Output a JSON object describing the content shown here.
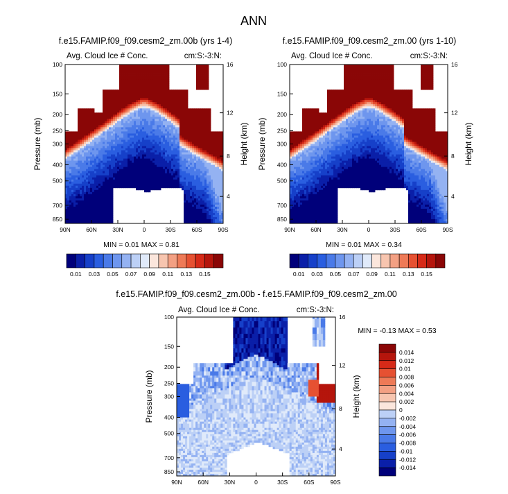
{
  "page_title": "ANN",
  "palette": [
    "#00007a",
    "#0a1fa8",
    "#1640c9",
    "#2a5ee0",
    "#4a7ae8",
    "#6e96ee",
    "#94b2f2",
    "#bcd0f6",
    "#e0eafa",
    "#fbe6dc",
    "#f7c5af",
    "#f3a083",
    "#ee7a57",
    "#e65132",
    "#d62a18",
    "#b5150c",
    "#8a0606"
  ],
  "chart_data": [
    {
      "type": "heatmap",
      "title": "f.e15.FAMIP.f09_f09.cesm2_zm.00b (yrs 1-4)",
      "left_label": "Avg. Cloud Ice # Conc.",
      "right_label": "cm:S:-3:N:",
      "xlabel": "",
      "ylabel": "Pressure (mb)",
      "ylabel_right": "Height (km)",
      "x_ticks": [
        "90N",
        "60N",
        "30N",
        "0",
        "30S",
        "60S",
        "90S"
      ],
      "y_ticks": [
        "100",
        "150",
        "200",
        "250",
        "300",
        "400",
        "500",
        "700",
        "850"
      ],
      "y_right_ticks": [
        "16",
        "12",
        "8",
        "4"
      ],
      "min_max": "MIN =  0.01   MAX =  0.81",
      "colorbar_labels": [
        "0.01",
        "0.03",
        "0.05",
        "0.07",
        "0.09",
        "0.11",
        "0.13",
        "0.15"
      ]
    },
    {
      "type": "heatmap",
      "title": "f.e15.FAMIP.f09_f09.cesm2_zm.00 (yrs 1-10)",
      "left_label": "Avg. Cloud Ice # Conc.",
      "right_label": "cm:S:-3:N:",
      "xlabel": "",
      "ylabel": "Pressure (mb)",
      "ylabel_right": "Height (km)",
      "x_ticks": [
        "90N",
        "60N",
        "30N",
        "0",
        "30S",
        "60S",
        "90S"
      ],
      "y_ticks": [
        "100",
        "150",
        "200",
        "250",
        "300",
        "400",
        "500",
        "700",
        "850"
      ],
      "y_right_ticks": [
        "16",
        "12",
        "8",
        "4"
      ],
      "min_max": "MIN =  0.01   MAX =  0.34",
      "colorbar_labels": [
        "0.01",
        "0.03",
        "0.05",
        "0.07",
        "0.09",
        "0.11",
        "0.13",
        "0.15"
      ]
    },
    {
      "type": "heatmap",
      "title": "f.e15.FAMIP.f09_f09.cesm2_zm.00b - f.e15.FAMIP.f09_f09.cesm2_zm.00",
      "left_label": "Avg. Cloud Ice # Conc.",
      "right_label": "cm:S:-3:N:",
      "xlabel": "",
      "ylabel": "Pressure (mb)",
      "ylabel_right": "Height (km)",
      "x_ticks": [
        "90N",
        "60N",
        "30N",
        "0",
        "30S",
        "60S",
        "90S"
      ],
      "y_ticks": [
        "100",
        "150",
        "200",
        "250",
        "300",
        "400",
        "500",
        "700",
        "850"
      ],
      "y_right_ticks": [
        "16",
        "12",
        "8",
        "4"
      ],
      "min_max": "MIN = -0.13   MAX =  0.53",
      "colorbar_labels": [
        "0.014",
        "0.012",
        "0.01",
        "0.008",
        "0.006",
        "0.004",
        "0.002",
        "0",
        "-0.002",
        "-0.004",
        "-0.006",
        "-0.008",
        "-0.01",
        "-0.012",
        "-0.014"
      ]
    }
  ]
}
